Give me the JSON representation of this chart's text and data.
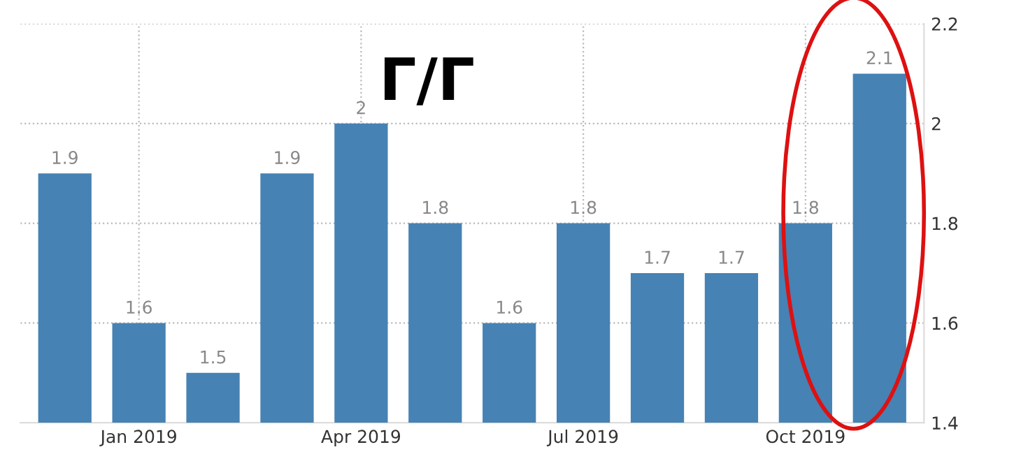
{
  "chart_data": {
    "type": "bar",
    "title": "Г/Г",
    "categories": [
      null,
      "Jan 2019",
      null,
      null,
      "Apr 2019",
      null,
      null,
      "Jul 2019",
      null,
      null,
      "Oct 2019",
      null
    ],
    "values": [
      1.9,
      1.6,
      1.5,
      1.9,
      2,
      1.8,
      1.6,
      1.8,
      1.7,
      1.7,
      1.8,
      2.1
    ],
    "color": "#4682b4",
    "ylim": [
      1.4,
      2.2
    ],
    "yticks": [
      1.4,
      1.6,
      1.8,
      2,
      2.2
    ],
    "grid": true,
    "data_labels": true
  }
}
